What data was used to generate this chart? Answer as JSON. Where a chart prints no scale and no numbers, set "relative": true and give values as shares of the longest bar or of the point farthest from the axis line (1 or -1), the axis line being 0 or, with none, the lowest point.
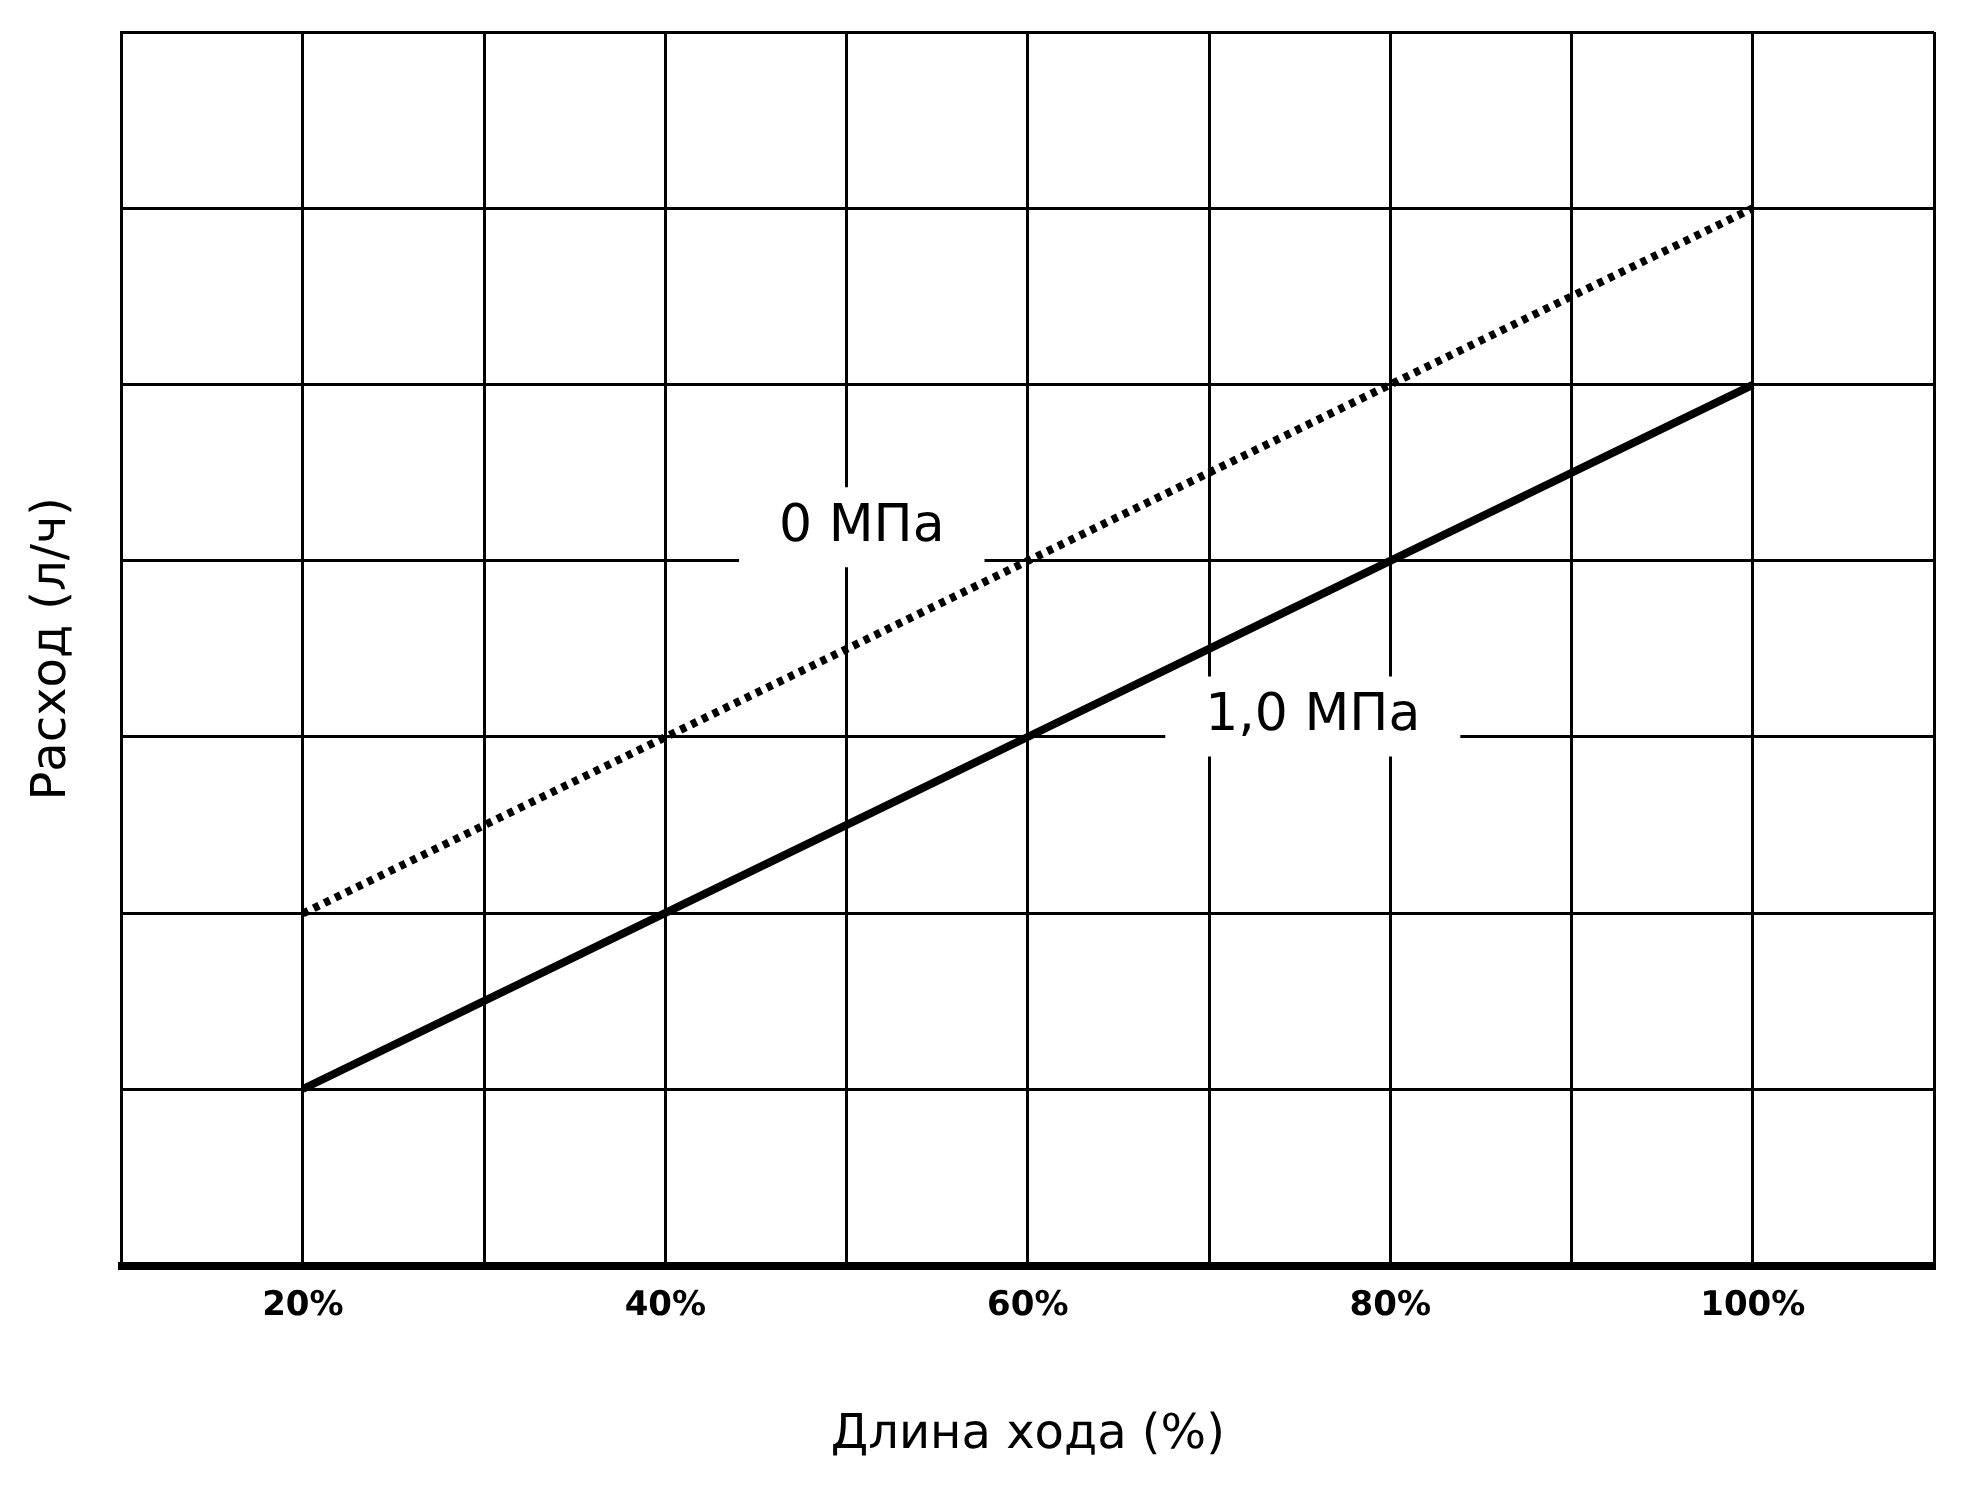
{
  "chart_data": {
    "type": "line",
    "xlabel": "Длина хода (%)",
    "ylabel": "Расход (л/ч)",
    "relative": true,
    "x": [
      20,
      100
    ],
    "xlim": [
      10,
      110
    ],
    "xticks": [
      {
        "value": 10,
        "label": null
      },
      {
        "value": 20,
        "label": "20%"
      },
      {
        "value": 30,
        "label": null
      },
      {
        "value": 40,
        "label": "40%"
      },
      {
        "value": 50,
        "label": null
      },
      {
        "value": 60,
        "label": "60%"
      },
      {
        "value": 70,
        "label": null
      },
      {
        "value": 80,
        "label": "80%"
      },
      {
        "value": 90,
        "label": null
      },
      {
        "value": 100,
        "label": "100%"
      },
      {
        "value": 110,
        "label": null
      }
    ],
    "series": [
      {
        "name": "0 МПа",
        "color": "#000000",
        "values": [
          0.333,
          1
        ],
        "line_style": "dotted"
      },
      {
        "name": "1,0 МПа",
        "color": "#000000",
        "values": [
          0.167,
          0.833
        ],
        "line_style": "solid"
      }
    ],
    "grid": true,
    "legend": false,
    "marker": "none"
  }
}
